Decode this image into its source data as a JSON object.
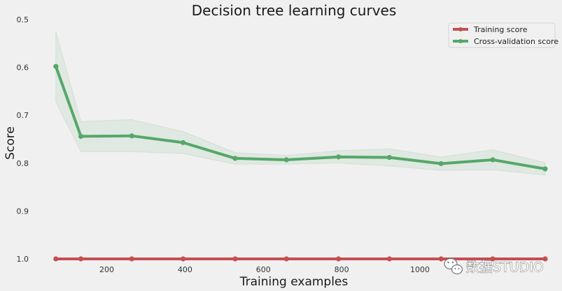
{
  "chart_data": {
    "type": "line",
    "title": "Decision tree learning curves",
    "xlabel": "Training examples",
    "ylabel": "Score",
    "xlim": [
      40,
      1320
    ],
    "ylim": [
      1.0,
      0.5
    ],
    "grid": false,
    "legend_position": "top-right",
    "xticks": [
      200,
      400,
      600,
      800,
      1000
    ],
    "yticks": [
      0.5,
      0.6,
      0.7,
      0.8,
      0.9,
      1.0
    ],
    "xtick_labels": [
      "200",
      "400",
      "600",
      "800",
      "1000"
    ],
    "ytick_labels": [
      "0.5",
      "0.6",
      "0.7",
      "0.8",
      "0.9",
      "1.0"
    ],
    "x": [
      70,
      134,
      264,
      395,
      528,
      659,
      792,
      922,
      1054,
      1186,
      1320
    ],
    "series": [
      {
        "name": "Training score",
        "color": "#c44e52",
        "values": [
          1.0,
          1.0,
          1.0,
          1.0,
          1.0,
          1.0,
          1.0,
          1.0,
          1.0,
          1.0,
          1.0
        ],
        "band_upper": [
          1.0,
          1.0,
          1.0,
          1.0,
          1.0,
          1.0,
          1.0,
          1.0,
          1.0,
          1.0,
          1.0
        ],
        "band_lower": [
          1.0,
          1.0,
          1.0,
          1.0,
          1.0,
          1.0,
          1.0,
          1.0,
          1.0,
          1.0,
          1.0
        ]
      },
      {
        "name": "Cross-validation score",
        "color": "#55a868",
        "values": [
          0.598,
          0.744,
          0.743,
          0.757,
          0.79,
          0.793,
          0.787,
          0.788,
          0.801,
          0.793,
          0.812
        ],
        "band_upper": [
          0.525,
          0.713,
          0.709,
          0.734,
          0.778,
          0.784,
          0.774,
          0.77,
          0.787,
          0.772,
          0.799
        ],
        "band_lower": [
          0.672,
          0.776,
          0.776,
          0.78,
          0.802,
          0.802,
          0.8,
          0.806,
          0.815,
          0.814,
          0.825
        ]
      }
    ]
  },
  "watermark": {
    "text": "数据STUDIO",
    "icon": "wechat-icon"
  }
}
